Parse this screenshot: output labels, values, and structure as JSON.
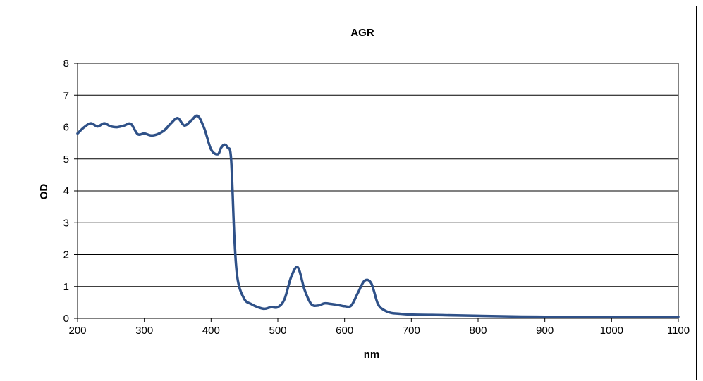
{
  "chart_data": {
    "type": "line",
    "title": "AGR",
    "xlabel": "nm",
    "ylabel": "OD",
    "xlim": [
      200,
      1100
    ],
    "ylim": [
      0,
      8
    ],
    "xticks": [
      200,
      300,
      400,
      500,
      600,
      700,
      800,
      900,
      1000,
      1100
    ],
    "yticks": [
      0,
      1,
      2,
      3,
      4,
      5,
      6,
      7,
      8
    ],
    "grid": "horizontal",
    "legend": "none",
    "line_color": "#2F5188",
    "series": [
      {
        "x": [
          200,
          210,
          220,
          230,
          240,
          250,
          260,
          270,
          280,
          290,
          300,
          310,
          320,
          330,
          340,
          350,
          360,
          370,
          380,
          390,
          400,
          410,
          415,
          420,
          425,
          430,
          435,
          440,
          450,
          460,
          470,
          480,
          490,
          500,
          510,
          520,
          530,
          540,
          550,
          560,
          570,
          580,
          590,
          600,
          610,
          620,
          630,
          640,
          650,
          660,
          670,
          680,
          700,
          750,
          800,
          850,
          900,
          1000,
          1100
        ],
        "y": [
          5.8,
          6.0,
          6.12,
          6.02,
          6.12,
          6.02,
          6.0,
          6.05,
          6.1,
          5.78,
          5.8,
          5.74,
          5.78,
          5.9,
          6.12,
          6.28,
          6.05,
          6.2,
          6.35,
          5.95,
          5.3,
          5.15,
          5.35,
          5.45,
          5.35,
          5.0,
          2.5,
          1.2,
          0.6,
          0.45,
          0.35,
          0.3,
          0.35,
          0.35,
          0.6,
          1.3,
          1.6,
          0.9,
          0.45,
          0.4,
          0.47,
          0.45,
          0.42,
          0.38,
          0.4,
          0.8,
          1.18,
          1.1,
          0.45,
          0.25,
          0.17,
          0.15,
          0.12,
          0.1,
          0.08,
          0.06,
          0.05,
          0.05,
          0.05
        ]
      }
    ]
  }
}
